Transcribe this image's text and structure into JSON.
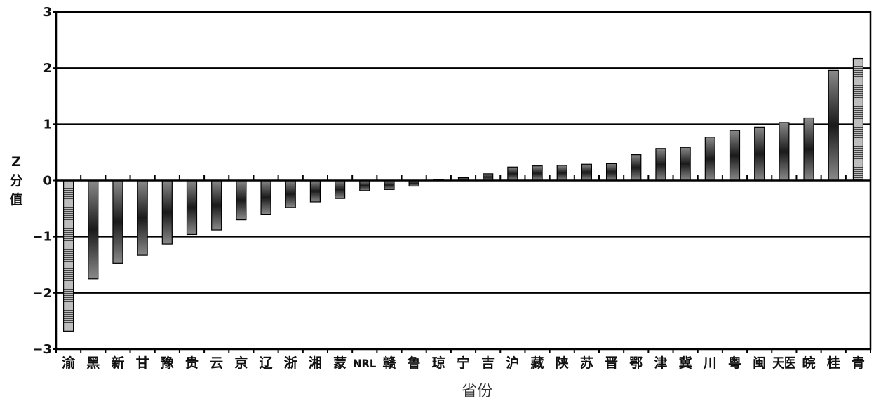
{
  "chart_data": {
    "type": "bar",
    "title": "",
    "xlabel": "省份",
    "ylabel": "Z分值",
    "ylim": [
      -3,
      3
    ],
    "yticks": [
      3,
      2,
      1,
      0,
      -1,
      -2,
      -3
    ],
    "ytick_labels": [
      "3",
      "2",
      "1",
      "0",
      "−1",
      "−2",
      "−3"
    ],
    "grid": true,
    "categories": [
      "渝",
      "黑",
      "新",
      "甘",
      "豫",
      "贵",
      "云",
      "京",
      "辽",
      "浙",
      "湘",
      "蒙",
      "NRL",
      "赣",
      "鲁",
      "琼",
      "宁",
      "吉",
      "沪",
      "藏",
      "陕",
      "苏",
      "晋",
      "鄂",
      "津",
      "冀",
      "川",
      "粤",
      "闽",
      "天医",
      "皖",
      "桂",
      "青"
    ],
    "values": [
      -2.68,
      -1.75,
      -1.47,
      -1.33,
      -1.13,
      -0.96,
      -0.88,
      -0.7,
      -0.6,
      -0.48,
      -0.38,
      -0.32,
      -0.18,
      -0.16,
      -0.1,
      0.02,
      0.05,
      0.12,
      0.24,
      0.26,
      0.27,
      0.29,
      0.3,
      0.46,
      0.57,
      0.59,
      0.77,
      0.89,
      0.95,
      1.03,
      1.11,
      1.96,
      2.17
    ],
    "highlight_categories": [
      "渝",
      "青"
    ],
    "colors": {
      "bar_dark": "#111111",
      "bar_light": "#8a8a8a",
      "axis": "#000000",
      "grid": "#000000"
    }
  }
}
